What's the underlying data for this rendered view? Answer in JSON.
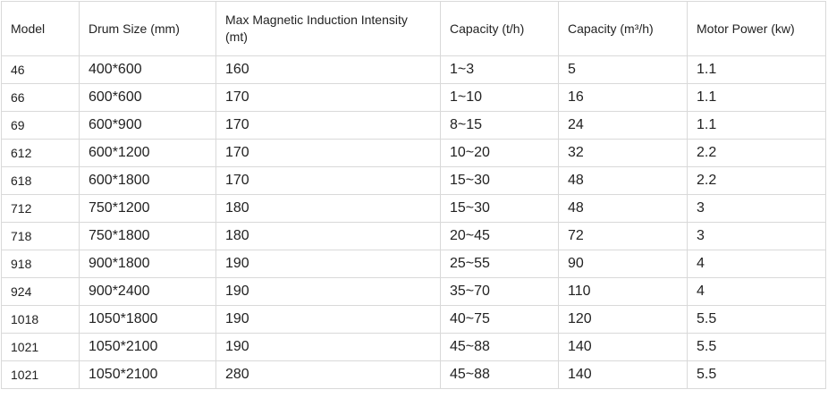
{
  "table": {
    "headers": [
      "Model",
      "Drum Size (mm)",
      "Max Magnetic Induction Intensity (mt)",
      "Capacity (t/h)",
      "Capacity (m³/h)",
      "Motor Power (kw)"
    ],
    "rows": [
      [
        "46",
        "400*600",
        "160",
        "1~3",
        "5",
        "1.1"
      ],
      [
        "66",
        "600*600",
        "170",
        "1~10",
        "16",
        "1.1"
      ],
      [
        "69",
        "600*900",
        "170",
        "8~15",
        "24",
        "1.1"
      ],
      [
        "612",
        "600*1200",
        "170",
        "10~20",
        "32",
        "2.2"
      ],
      [
        "618",
        "600*1800",
        "170",
        "15~30",
        "48",
        "2.2"
      ],
      [
        "712",
        "750*1200",
        "180",
        "15~30",
        "48",
        "3"
      ],
      [
        "718",
        "750*1800",
        "180",
        "20~45",
        "72",
        "3"
      ],
      [
        "918",
        "900*1800",
        "190",
        "25~55",
        "90",
        "4"
      ],
      [
        "924",
        "900*2400",
        "190",
        "35~70",
        "110",
        "4"
      ],
      [
        "1018",
        "1050*1800",
        "190",
        "40~75",
        "120",
        "5.5"
      ],
      [
        "1021",
        "1050*2100",
        "190",
        "45~88",
        "140",
        "5.5"
      ],
      [
        "1021",
        "1050*2100",
        "280",
        "45~88",
        "140",
        "5.5"
      ]
    ]
  }
}
